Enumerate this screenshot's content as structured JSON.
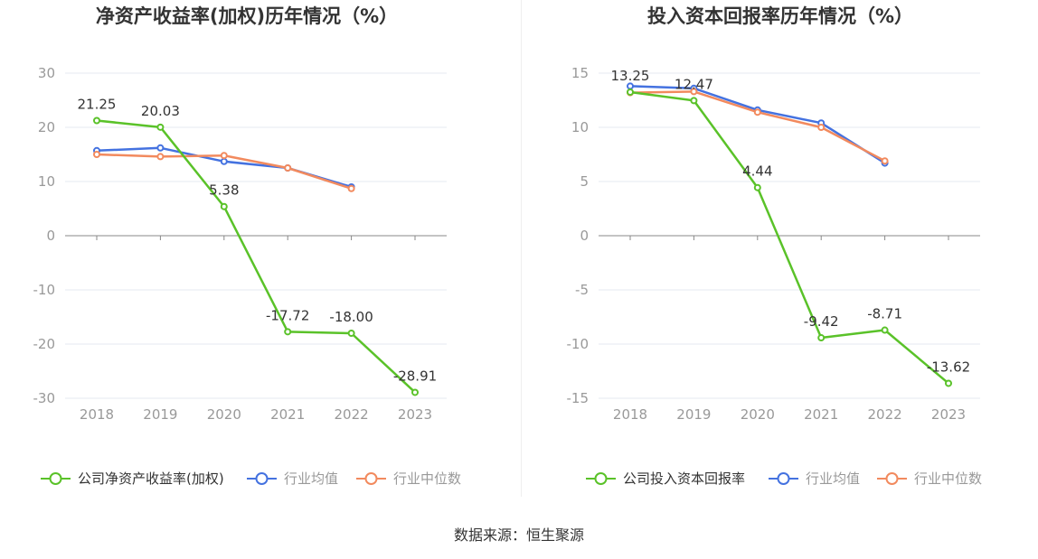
{
  "colors": {
    "company": "#5ac229",
    "industry_avg": "#4472e0",
    "industry_median": "#f28a5e",
    "grid": "#e6e9f2",
    "axis": "#888888"
  },
  "source_text": "数据来源：恒生聚源",
  "chart_data": [
    {
      "type": "line",
      "title": "净资产收益率(加权)历年情况（%）",
      "categories": [
        "2018",
        "2019",
        "2020",
        "2021",
        "2022",
        "2023"
      ],
      "ylim": [
        -30,
        30
      ],
      "yticks": [
        30,
        20,
        10,
        0,
        -10,
        -20,
        -30
      ],
      "grid": true,
      "legend_position": "bottom",
      "series": [
        {
          "name": "公司净资产收益率(加权)",
          "values": [
            21.25,
            20.03,
            5.38,
            -17.72,
            -18.0,
            -28.91
          ],
          "labels": [
            "21.25",
            "20.03",
            "5.38",
            "-17.72",
            "-18.00",
            "-28.91"
          ]
        },
        {
          "name": "行业均值",
          "values": [
            15.7,
            16.2,
            13.7,
            12.5,
            9.0,
            null
          ]
        },
        {
          "name": "行业中位数",
          "values": [
            15.0,
            14.6,
            14.8,
            12.5,
            8.7,
            null
          ]
        }
      ]
    },
    {
      "type": "line",
      "title": "投入资本回报率历年情况（%）",
      "categories": [
        "2018",
        "2019",
        "2020",
        "2021",
        "2022",
        "2023"
      ],
      "ylim": [
        -15,
        15
      ],
      "yticks": [
        15,
        10,
        5,
        0,
        -5,
        -10,
        -15
      ],
      "grid": true,
      "legend_position": "bottom",
      "series": [
        {
          "name": "公司投入资本回报率",
          "values": [
            13.25,
            12.47,
            4.44,
            -9.42,
            -8.71,
            -13.62
          ],
          "labels": [
            "13.25",
            "12.47",
            "4.44",
            "-9.42",
            "-8.71",
            "-13.62"
          ]
        },
        {
          "name": "行业均值",
          "values": [
            13.8,
            13.6,
            11.6,
            10.4,
            6.7,
            null
          ]
        },
        {
          "name": "行业中位数",
          "values": [
            13.2,
            13.3,
            11.4,
            10.0,
            6.9,
            null
          ]
        }
      ]
    }
  ]
}
